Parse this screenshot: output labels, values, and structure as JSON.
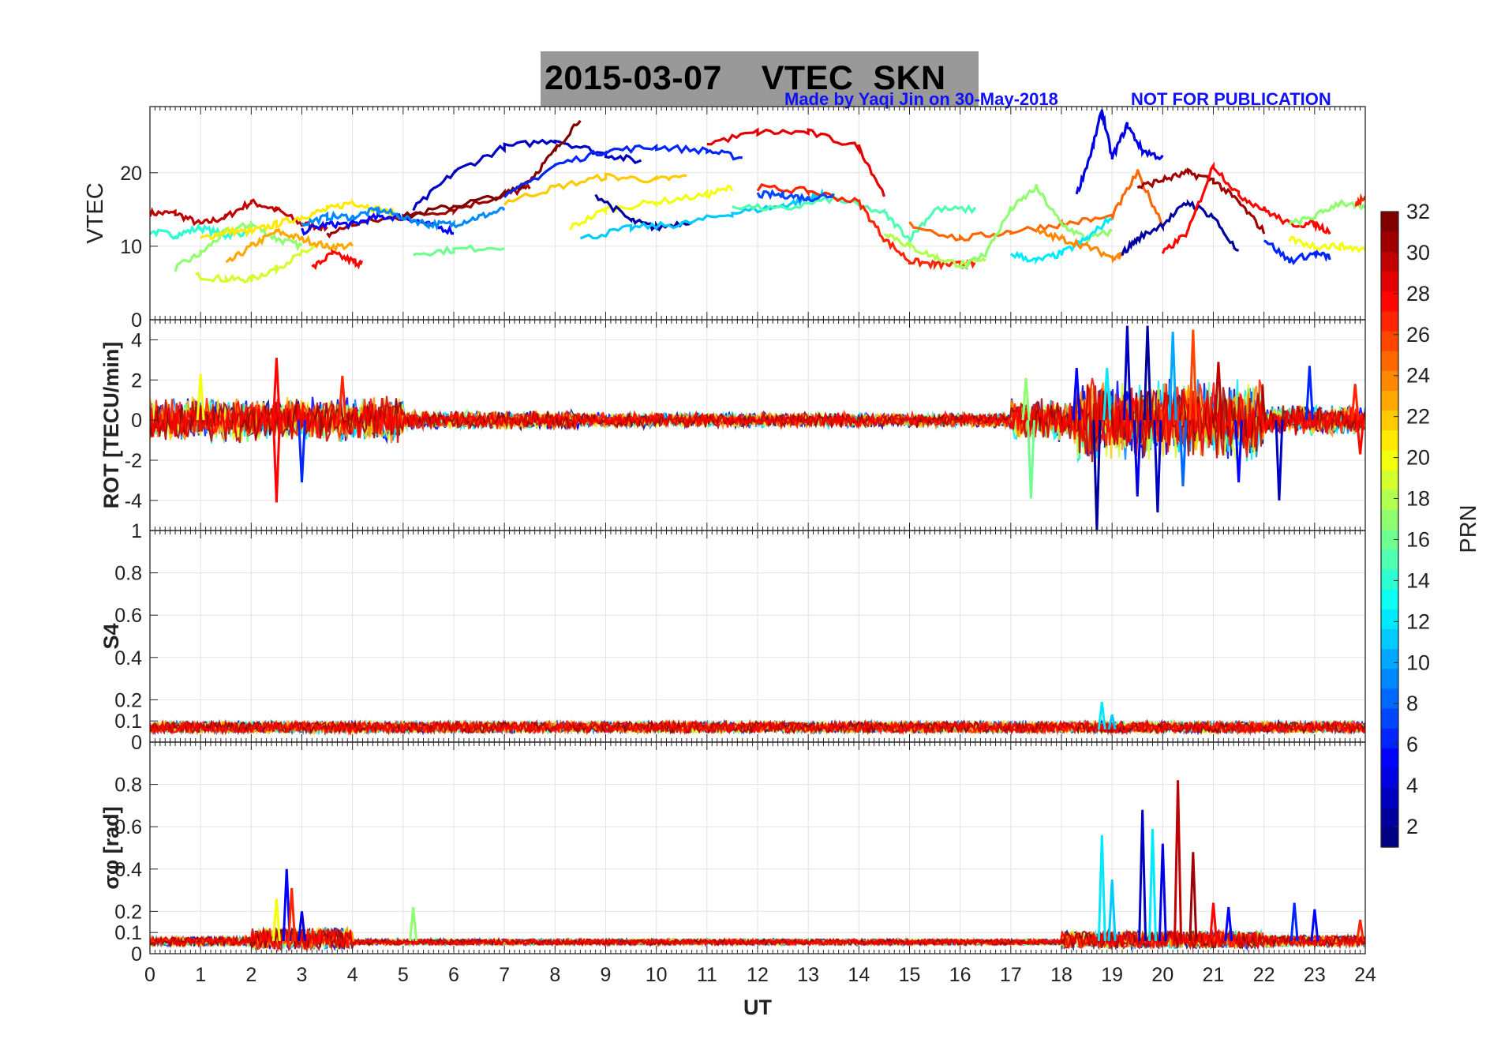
{
  "figure": {
    "title": "2015-03-07    VTEC  SKN",
    "credit": "Made by Yaqi Jin on 30-May-2018",
    "notice": "NOT FOR PUBLICATION"
  },
  "colorbar": {
    "label": "PRN",
    "range": [
      1,
      32
    ],
    "ticks": [
      "2",
      "4",
      "6",
      "8",
      "10",
      "12",
      "14",
      "16",
      "18",
      "20",
      "22",
      "24",
      "26",
      "28",
      "30",
      "32"
    ],
    "colormap": "jet"
  },
  "chart_data": [
    {
      "type": "line",
      "ylabel": "VTEC",
      "xlabel": "",
      "xlim": [
        0,
        24
      ],
      "ylim": [
        0,
        29
      ],
      "yticks": [
        "0",
        "10",
        "20"
      ],
      "grid": true,
      "series": [
        {
          "prn": 30,
          "x": [
            0,
            0.5,
            1,
            1.5,
            2,
            2.5,
            3,
            3.5
          ],
          "y": [
            14.5,
            14.5,
            13,
            14,
            16,
            15,
            13,
            12.5
          ]
        },
        {
          "prn": 14,
          "x": [
            0,
            0.5,
            1,
            1.5,
            2
          ],
          "y": [
            12,
            11.5,
            12.5,
            11.5,
            12
          ]
        },
        {
          "prn": 17,
          "x": [
            0.5,
            1,
            1.5,
            2,
            2.5,
            3
          ],
          "y": [
            7,
            9,
            12,
            13,
            11,
            10
          ]
        },
        {
          "prn": 19,
          "x": [
            0.9,
            1.5,
            2,
            2.5,
            3,
            3.3
          ],
          "y": [
            6,
            5.5,
            5.5,
            7,
            9,
            10
          ]
        },
        {
          "prn": 23,
          "x": [
            1.5,
            2,
            2.5,
            3,
            3.5,
            4
          ],
          "y": [
            7.5,
            10,
            12,
            11,
            10,
            10
          ]
        },
        {
          "prn": 21,
          "x": [
            1,
            1.5,
            2,
            2.5,
            3,
            3.5,
            4,
            4.5,
            5
          ],
          "y": [
            11,
            12,
            12,
            13,
            14,
            15,
            16,
            15,
            14
          ]
        },
        {
          "prn": 28,
          "x": [
            3.2,
            3.6,
            4,
            4.2
          ],
          "y": [
            7,
            9,
            8,
            7.5
          ]
        },
        {
          "prn": 31,
          "x": [
            3.5,
            4,
            5,
            6,
            7,
            7.5
          ],
          "y": [
            11.5,
            13,
            14,
            15,
            17,
            18
          ]
        },
        {
          "prn": 5,
          "x": [
            3,
            3.5,
            4,
            4.5,
            5,
            5.5,
            6
          ],
          "y": [
            12,
            13,
            13,
            14,
            14,
            13,
            12
          ]
        },
        {
          "prn": 9,
          "x": [
            3,
            3.5,
            4,
            4.5,
            5,
            5.5,
            6,
            6.5,
            7
          ],
          "y": [
            13,
            14,
            14,
            15,
            14,
            13,
            13,
            14,
            15
          ]
        },
        {
          "prn": 3,
          "x": [
            5.2,
            6,
            7,
            8,
            9,
            9.7
          ],
          "y": [
            15,
            20,
            23.5,
            24.5,
            22.5,
            21.5
          ]
        },
        {
          "prn": 16,
          "x": [
            5.2,
            6,
            7
          ],
          "y": [
            9,
            9.5,
            10
          ]
        },
        {
          "prn": 32,
          "x": [
            5,
            6,
            7,
            7.5,
            8,
            8.5
          ],
          "y": [
            14,
            15.5,
            17,
            19,
            23,
            27.5
          ]
        },
        {
          "prn": 6,
          "x": [
            7,
            8,
            9,
            10,
            11,
            11.7
          ],
          "y": [
            16.5,
            21,
            23,
            23.5,
            23,
            22
          ]
        },
        {
          "prn": 22,
          "x": [
            7,
            8,
            9,
            10,
            10.6
          ],
          "y": [
            16,
            18,
            19.5,
            19,
            19.5
          ]
        },
        {
          "prn": 20,
          "x": [
            8.3,
            9,
            10,
            11,
            11.5
          ],
          "y": [
            12.5,
            15,
            16,
            17,
            18
          ]
        },
        {
          "prn": 2,
          "x": [
            8.8,
            9.5,
            10,
            10.7
          ],
          "y": [
            17,
            13.5,
            12.5,
            13.5
          ]
        },
        {
          "prn": 11,
          "x": [
            8.5,
            9.5,
            10.5,
            11.5,
            12.5,
            13,
            13.3
          ],
          "y": [
            11,
            12.5,
            13,
            14.5,
            15.5,
            16.5,
            17
          ]
        },
        {
          "prn": 15,
          "x": [
            11.5,
            12.5,
            13.5,
            14.5,
            15,
            15.5,
            16.3
          ],
          "y": [
            15.5,
            15,
            16.5,
            14.5,
            11,
            15,
            15
          ]
        },
        {
          "prn": 29,
          "x": [
            11,
            12,
            13,
            14,
            14.5
          ],
          "y": [
            24,
            25.5,
            25.5,
            23.5,
            17
          ]
        },
        {
          "prn": 27,
          "x": [
            12,
            13,
            14,
            14.5,
            15,
            15.5,
            16,
            16.3
          ],
          "y": [
            18,
            17.5,
            16,
            11,
            8,
            7.5,
            7.5,
            7.5
          ]
        },
        {
          "prn": 7,
          "x": [
            12,
            12.5,
            13,
            13.5
          ],
          "y": [
            17,
            17,
            16.5,
            17
          ]
        },
        {
          "prn": 18,
          "x": [
            14.5,
            15,
            15.5,
            16,
            16.5
          ],
          "y": [
            12,
            10,
            8.5,
            7.5,
            8
          ]
        },
        {
          "prn": 25,
          "x": [
            15,
            16,
            17,
            18,
            19,
            19.5,
            20
          ],
          "y": [
            13,
            11,
            12,
            13,
            14,
            20,
            13
          ]
        },
        {
          "prn": 17,
          "x": [
            16,
            16.5,
            17,
            17.5,
            18,
            18.5,
            19
          ],
          "y": [
            7,
            9,
            15,
            18,
            13,
            11,
            12
          ]
        },
        {
          "prn": 12,
          "x": [
            17,
            17.5,
            18,
            18.5,
            19
          ],
          "y": [
            9,
            8,
            9,
            11,
            14
          ]
        },
        {
          "prn": 4,
          "x": [
            18.3,
            18.6,
            18.8,
            19,
            19.3,
            19.6,
            20
          ],
          "y": [
            17,
            23,
            28.5,
            22,
            26.5,
            23,
            22
          ]
        },
        {
          "prn": 24,
          "x": [
            17.5,
            18,
            18.5,
            19,
            19.2
          ],
          "y": [
            12,
            11,
            10,
            8.5,
            9
          ]
        },
        {
          "prn": 31,
          "x": [
            19.5,
            20,
            20.5,
            21,
            21.5,
            22
          ],
          "y": [
            18,
            19,
            20,
            19,
            16,
            12
          ]
        },
        {
          "prn": 2,
          "x": [
            19.2,
            19.5,
            20,
            20.5,
            21,
            21.5
          ],
          "y": [
            9,
            11,
            13,
            16,
            14,
            9
          ]
        },
        {
          "prn": 28,
          "x": [
            20,
            20.5,
            21,
            21.5,
            22,
            22.5,
            23,
            23.3
          ],
          "y": [
            9,
            12,
            21,
            17,
            15,
            13,
            13,
            12
          ]
        },
        {
          "prn": 6,
          "x": [
            22,
            22.5,
            23,
            23.3
          ],
          "y": [
            11,
            8,
            9,
            8.5
          ]
        },
        {
          "prn": 17,
          "x": [
            22.5,
            23,
            23.5,
            24
          ],
          "y": [
            13,
            14,
            16,
            15
          ]
        },
        {
          "prn": 20,
          "x": [
            22.5,
            23,
            23.5,
            24
          ],
          "y": [
            11,
            10,
            10,
            9.5
          ]
        },
        {
          "prn": 27,
          "x": [
            23.8,
            24
          ],
          "y": [
            15.5,
            17
          ]
        }
      ]
    },
    {
      "type": "line",
      "ylabel": "ROT [TECU/min]",
      "xlabel": "",
      "xlim": [
        0,
        24
      ],
      "ylim": [
        -5.5,
        5
      ],
      "yticks": [
        "-4",
        "-2",
        "0",
        "2",
        "4"
      ],
      "grid": true,
      "note": "noisy per-PRN traces; large spikes listed as [x, y, prn]",
      "spikes": [
        [
          2.5,
          -4.1,
          28
        ],
        [
          2.5,
          3.1,
          28
        ],
        [
          1,
          2.3,
          20
        ],
        [
          3.8,
          2.2,
          27
        ],
        [
          3,
          -3.1,
          6
        ],
        [
          17.4,
          -3.9,
          16
        ],
        [
          17.3,
          2.1,
          17
        ],
        [
          18.3,
          2.6,
          5
        ],
        [
          18.7,
          -5.5,
          2
        ],
        [
          18.9,
          2.6,
          12
        ],
        [
          19.3,
          4.7,
          3
        ],
        [
          19.5,
          -3.8,
          4
        ],
        [
          19.7,
          4.7,
          2
        ],
        [
          19.9,
          -4.6,
          3
        ],
        [
          20.2,
          4.4,
          10
        ],
        [
          20.4,
          -3.3,
          8
        ],
        [
          20.6,
          4.5,
          26
        ],
        [
          21.1,
          2.9,
          30
        ],
        [
          21.5,
          -3.1,
          5
        ],
        [
          22.3,
          -4,
          3
        ],
        [
          22.9,
          2.7,
          6
        ],
        [
          23.8,
          1.8,
          27
        ],
        [
          23.9,
          -1.7,
          28
        ]
      ],
      "bands": [
        [
          0,
          5,
          1.2
        ],
        [
          5,
          8.5,
          0.5
        ],
        [
          8.5,
          17,
          0.4
        ],
        [
          17,
          18.3,
          1.2
        ],
        [
          18.3,
          22,
          2.2
        ],
        [
          22,
          24,
          0.8
        ]
      ]
    },
    {
      "type": "line",
      "ylabel": "S4",
      "xlabel": "",
      "xlim": [
        0,
        24
      ],
      "ylim": [
        0,
        1
      ],
      "yticks": [
        "0",
        "0.1",
        "0.2",
        "0.4",
        "0.6",
        "0.8",
        "1"
      ],
      "grid": true,
      "note": "all PRNs near baseline 0.05-0.1",
      "spikes": [
        [
          18.8,
          0.19,
          12
        ],
        [
          19,
          0.13,
          11
        ]
      ],
      "bands": [
        [
          0,
          24,
          0.05
        ]
      ]
    },
    {
      "type": "line",
      "ylabel": "σφ [rad]",
      "xlabel": "UT",
      "xlim": [
        0,
        24
      ],
      "ylim": [
        0,
        1
      ],
      "xticks": [
        "0",
        "1",
        "2",
        "3",
        "4",
        "5",
        "6",
        "7",
        "8",
        "9",
        "10",
        "11",
        "12",
        "13",
        "14",
        "15",
        "16",
        "17",
        "18",
        "19",
        "20",
        "21",
        "22",
        "23",
        "24"
      ],
      "yticks": [
        "0",
        "0.1",
        "0.2",
        "0.4",
        "0.6",
        "0.8"
      ],
      "grid": true,
      "spikes": [
        [
          2.7,
          0.4,
          5
        ],
        [
          2.5,
          0.26,
          20
        ],
        [
          2.8,
          0.31,
          27
        ],
        [
          3,
          0.2,
          4
        ],
        [
          5.2,
          0.22,
          17
        ],
        [
          18.8,
          0.56,
          12
        ],
        [
          19,
          0.35,
          11
        ],
        [
          19.6,
          0.68,
          3
        ],
        [
          19.8,
          0.59,
          12
        ],
        [
          20,
          0.52,
          4
        ],
        [
          20.3,
          0.82,
          30
        ],
        [
          20.6,
          0.48,
          31
        ],
        [
          21,
          0.24,
          28
        ],
        [
          21.3,
          0.22,
          5
        ],
        [
          22.6,
          0.24,
          6
        ],
        [
          23,
          0.21,
          5
        ],
        [
          23.9,
          0.16,
          27
        ]
      ],
      "bands": [
        [
          0,
          2,
          0.04
        ],
        [
          2,
          4,
          0.1
        ],
        [
          4,
          18,
          0.025
        ],
        [
          18,
          22,
          0.08
        ],
        [
          22,
          24,
          0.05
        ]
      ]
    }
  ]
}
